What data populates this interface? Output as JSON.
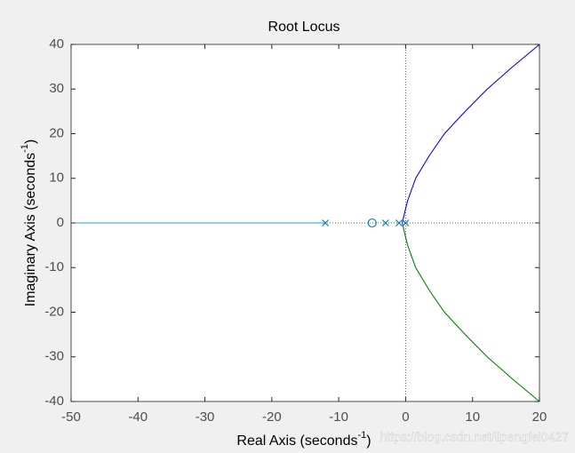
{
  "chart_data": {
    "type": "rootlocus",
    "title": "Root Locus",
    "xlabel": {
      "text": "Real Axis (seconds",
      "sup": "-1",
      "end": ")"
    },
    "ylabel": {
      "text": "Imaginary Axis (seconds",
      "sup": "-1",
      "end": ")"
    },
    "watermark": "https://blog.csdn.net/lipengfei0427",
    "xlim": [
      -50,
      20
    ],
    "ylim": [
      -40,
      40
    ],
    "xticks": [
      -50,
      -40,
      -30,
      -20,
      -10,
      0,
      10,
      20
    ],
    "yticks": [
      -40,
      -30,
      -20,
      -10,
      0,
      10,
      20,
      30,
      40
    ],
    "reflines": {
      "x": 0,
      "y": 0
    },
    "loci": [
      {
        "color": "#1f9fd0",
        "x": [
          -12,
          -50
        ],
        "y": [
          0,
          0
        ]
      },
      {
        "color": "#0000ff",
        "x": [
          -0.5,
          -0.2,
          0.3,
          1.5,
          3.5,
          5.8,
          8.9,
          12.2,
          16,
          20
        ],
        "y": [
          0,
          2,
          5,
          10,
          15,
          20,
          25,
          30,
          35,
          40
        ]
      },
      {
        "color": "#008000",
        "x": [
          -0.5,
          -0.2,
          0.3,
          1.5,
          3.5,
          5.8,
          8.9,
          12.2,
          16,
          20
        ],
        "y": [
          0,
          -2,
          -5,
          -10,
          -15,
          -20,
          -25,
          -30,
          -35,
          -40
        ]
      }
    ],
    "poles": {
      "color": "#0072bd",
      "x": [
        -12,
        -3,
        -1,
        0
      ],
      "y": [
        0,
        0,
        0,
        0
      ]
    },
    "zeros": {
      "color": "#0072bd",
      "x": [
        -5
      ],
      "y": [
        0
      ]
    }
  }
}
